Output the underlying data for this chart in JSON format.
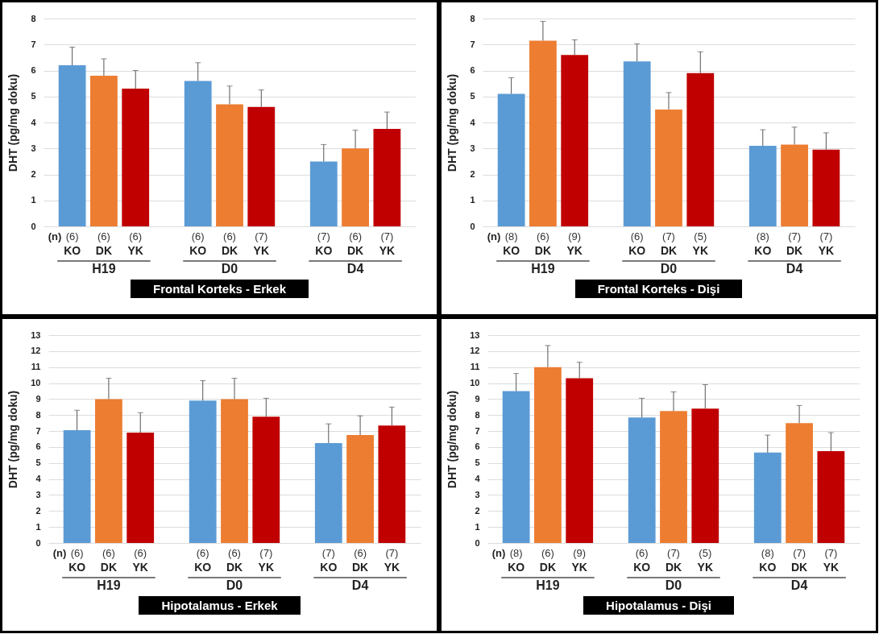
{
  "chart_data": [
    {
      "type": "bar",
      "title": "Frontal Korteks - Erkek",
      "ylabel": "DHT (pg/mg doku)",
      "categories": [
        "H19",
        "D0",
        "D4"
      ],
      "series": [
        {
          "name": "KO",
          "color": "#5b9bd5",
          "values": [
            6.2,
            5.6,
            2.5
          ],
          "errors": [
            0.7,
            0.7,
            0.65
          ]
        },
        {
          "name": "DK",
          "color": "#ed7d31",
          "values": [
            5.8,
            4.7,
            3.0
          ],
          "errors": [
            0.65,
            0.7,
            0.7
          ]
        },
        {
          "name": "YK",
          "color": "#c00000",
          "values": [
            5.3,
            4.6,
            3.75
          ],
          "errors": [
            0.7,
            0.65,
            0.65
          ]
        }
      ],
      "ylim": [
        0,
        8
      ],
      "yticks": [
        0,
        1,
        2,
        3,
        4,
        5,
        6,
        7,
        8
      ],
      "grid": "y",
      "annotations": [
        "(n)",
        "(6)",
        "(6)",
        "(6)",
        "(6)",
        "(6)",
        "(7)",
        "(7)",
        "(6)",
        "(7)"
      ]
    },
    {
      "type": "bar",
      "title": "Frontal Korteks - Dişi",
      "ylabel": "DHT (pg/mg doku)",
      "categories": [
        "H19",
        "D0",
        "D4"
      ],
      "series": [
        {
          "name": "KO",
          "color": "#5b9bd5",
          "values": [
            5.1,
            6.35,
            3.1
          ],
          "errors": [
            0.62,
            0.68,
            0.62
          ]
        },
        {
          "name": "DK",
          "color": "#ed7d31",
          "values": [
            7.15,
            4.5,
            3.15
          ],
          "errors": [
            0.74,
            0.65,
            0.67
          ]
        },
        {
          "name": "YK",
          "color": "#c00000",
          "values": [
            6.6,
            5.9,
            2.95
          ],
          "errors": [
            0.58,
            0.82,
            0.65
          ]
        }
      ],
      "ylim": [
        0,
        8
      ],
      "yticks": [
        0,
        1,
        2,
        3,
        4,
        5,
        6,
        7,
        8
      ],
      "grid": "y",
      "annotations": [
        "(n)",
        "(8)",
        "(6)",
        "(9)",
        "(6)",
        "(7)",
        "(5)",
        "(8)",
        "(7)",
        "(7)"
      ]
    },
    {
      "type": "bar",
      "title": "Hipotalamus - Erkek",
      "ylabel": "DHT (pg/mg doku)",
      "categories": [
        "H19",
        "D0",
        "D4"
      ],
      "series": [
        {
          "name": "KO",
          "color": "#5b9bd5",
          "values": [
            7.05,
            8.9,
            6.25
          ],
          "errors": [
            1.25,
            1.25,
            1.2
          ]
        },
        {
          "name": "DK",
          "color": "#ed7d31",
          "values": [
            9.0,
            9.0,
            6.75
          ],
          "errors": [
            1.3,
            1.3,
            1.2
          ]
        },
        {
          "name": "YK",
          "color": "#c00000",
          "values": [
            6.9,
            7.9,
            7.35
          ],
          "errors": [
            1.25,
            1.15,
            1.15
          ]
        }
      ],
      "ylim": [
        0,
        13
      ],
      "yticks": [
        0,
        1,
        2,
        3,
        4,
        5,
        6,
        7,
        8,
        9,
        10,
        11,
        12,
        13
      ],
      "grid": "y",
      "annotations": [
        "(n)",
        "(6)",
        "(6)",
        "(6)",
        "(6)",
        "(6)",
        "(7)",
        "(7)",
        "(6)",
        "(7)"
      ]
    },
    {
      "type": "bar",
      "title": "Hipotalamus - Dişi",
      "ylabel": "DHT (pg/mg doku)",
      "categories": [
        "H19",
        "D0",
        "D4"
      ],
      "series": [
        {
          "name": "KO",
          "color": "#5b9bd5",
          "values": [
            9.5,
            7.85,
            5.65
          ],
          "errors": [
            1.1,
            1.2,
            1.1
          ]
        },
        {
          "name": "DK",
          "color": "#ed7d31",
          "values": [
            11.0,
            8.25,
            7.5
          ],
          "errors": [
            1.35,
            1.2,
            1.1
          ]
        },
        {
          "name": "YK",
          "color": "#c00000",
          "values": [
            10.3,
            8.4,
            5.75
          ],
          "errors": [
            1.0,
            1.5,
            1.15
          ]
        }
      ],
      "ylim": [
        0,
        13
      ],
      "yticks": [
        0,
        1,
        2,
        3,
        4,
        5,
        6,
        7,
        8,
        9,
        10,
        11,
        12,
        13
      ],
      "grid": "y",
      "annotations": [
        "(n)",
        "(8)",
        "(6)",
        "(9)",
        "(6)",
        "(7)",
        "(5)",
        "(8)",
        "(7)",
        "(7)"
      ]
    }
  ]
}
